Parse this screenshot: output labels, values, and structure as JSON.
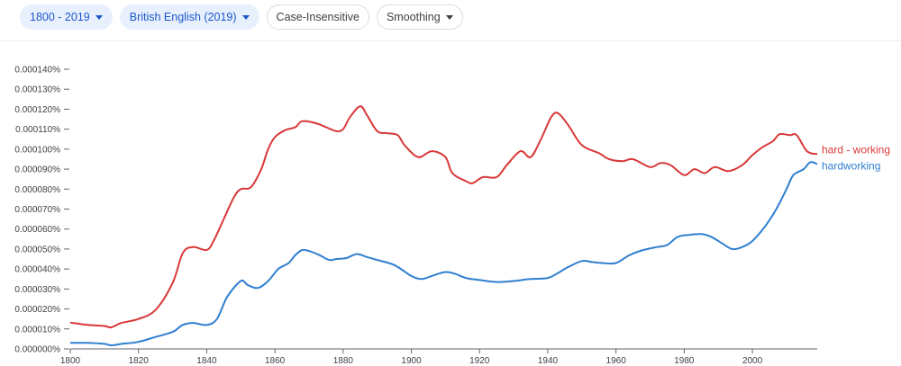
{
  "toolbar": {
    "range_label": "1800 - 2019",
    "corpus_label": "British English (2019)",
    "case_label": "Case-Insensitive",
    "smoothing_label": "Smoothing"
  },
  "colors": {
    "accent": "#1a57c9",
    "series_red": "#d93838",
    "series_blue": "#2f7fd0"
  },
  "chart_data": {
    "type": "line",
    "title": "",
    "xlabel": "",
    "ylabel": "",
    "xlim": [
      1800,
      2019
    ],
    "ylim": [
      0,
      0.00014
    ],
    "grid": false,
    "x_ticks": [
      1800,
      1820,
      1840,
      1860,
      1880,
      1900,
      1920,
      1940,
      1960,
      1980,
      2000
    ],
    "y_ticks": [
      "0.000000%",
      "0.000010%",
      "0.000020%",
      "0.000030%",
      "0.000040%",
      "0.000050%",
      "0.000060%",
      "0.000070%",
      "0.000080%",
      "0.000090%",
      "0.000100%",
      "0.000110%",
      "0.000120%",
      "0.000130%",
      "0.000140%"
    ],
    "series": [
      {
        "name": "hard - working",
        "color": "#d93838",
        "points": [
          [
            1800,
            1.32e-05
          ],
          [
            1805,
            1.2e-05
          ],
          [
            1810,
            1.15e-05
          ],
          [
            1812,
            1.08e-05
          ],
          [
            1815,
            1.3e-05
          ],
          [
            1820,
            1.5e-05
          ],
          [
            1825,
            1.95e-05
          ],
          [
            1830,
            3.3e-05
          ],
          [
            1833,
            4.8e-05
          ],
          [
            1836,
            5.1e-05
          ],
          [
            1840,
            4.95e-05
          ],
          [
            1842,
            5.4e-05
          ],
          [
            1845,
            6.5e-05
          ],
          [
            1848,
            7.6e-05
          ],
          [
            1850,
            8e-05
          ],
          [
            1853,
            8.1e-05
          ],
          [
            1856,
            9e-05
          ],
          [
            1858,
            0.0001
          ],
          [
            1860,
            0.000106
          ],
          [
            1863,
            0.0001095
          ],
          [
            1866,
            0.000111
          ],
          [
            1868,
            0.000114
          ],
          [
            1872,
            0.000113
          ],
          [
            1875,
            0.000111
          ],
          [
            1878,
            0.000109
          ],
          [
            1880,
            0.00011
          ],
          [
            1882,
            0.000116
          ],
          [
            1885,
            0.0001215
          ],
          [
            1887,
            0.000117
          ],
          [
            1890,
            0.000109
          ],
          [
            1893,
            0.000108
          ],
          [
            1896,
            0.000107
          ],
          [
            1898,
            0.000102
          ],
          [
            1902,
            9.6e-05
          ],
          [
            1906,
            9.9e-05
          ],
          [
            1910,
            9.6e-05
          ],
          [
            1912,
            8.8e-05
          ],
          [
            1916,
            8.4e-05
          ],
          [
            1918,
            8.3e-05
          ],
          [
            1921,
            8.6e-05
          ],
          [
            1925,
            8.6e-05
          ],
          [
            1928,
            9.2e-05
          ],
          [
            1932,
            9.9e-05
          ],
          [
            1935,
            9.6e-05
          ],
          [
            1938,
            0.000105
          ],
          [
            1941,
            0.000116
          ],
          [
            1943,
            0.000118
          ],
          [
            1946,
            0.000112
          ],
          [
            1950,
            0.000102
          ],
          [
            1955,
            9.8e-05
          ],
          [
            1958,
            9.5e-05
          ],
          [
            1962,
            9.4e-05
          ],
          [
            1965,
            9.5e-05
          ],
          [
            1970,
            9.1e-05
          ],
          [
            1973,
            9.3e-05
          ],
          [
            1976,
            9.2e-05
          ],
          [
            1980,
            8.7e-05
          ],
          [
            1983,
            9e-05
          ],
          [
            1986,
            8.8e-05
          ],
          [
            1989,
            9.1e-05
          ],
          [
            1993,
            8.9e-05
          ],
          [
            1997,
            9.2e-05
          ],
          [
            2000,
            9.7e-05
          ],
          [
            2003,
            0.000101
          ],
          [
            2006,
            0.000104
          ],
          [
            2008,
            0.0001075
          ],
          [
            2011,
            0.000107
          ],
          [
            2013,
            0.000107
          ],
          [
            2016,
            9.9e-05
          ],
          [
            2019,
            9.75e-05
          ]
        ]
      },
      {
        "name": "hardworking",
        "color": "#2f7fd0",
        "points": [
          [
            1800,
            3e-06
          ],
          [
            1805,
            3e-06
          ],
          [
            1810,
            2.5e-06
          ],
          [
            1812,
            1.8e-06
          ],
          [
            1815,
            2.5e-06
          ],
          [
            1820,
            3.5e-06
          ],
          [
            1825,
            6e-06
          ],
          [
            1830,
            8.5e-06
          ],
          [
            1833,
            1.2e-05
          ],
          [
            1836,
            1.3e-05
          ],
          [
            1840,
            1.2e-05
          ],
          [
            1843,
            1.5e-05
          ],
          [
            1846,
            2.6e-05
          ],
          [
            1850,
            3.4e-05
          ],
          [
            1852,
            3.2e-05
          ],
          [
            1855,
            3.05e-05
          ],
          [
            1858,
            3.4e-05
          ],
          [
            1861,
            4e-05
          ],
          [
            1864,
            4.3e-05
          ],
          [
            1866,
            4.7e-05
          ],
          [
            1868,
            4.95e-05
          ],
          [
            1870,
            4.9e-05
          ],
          [
            1873,
            4.7e-05
          ],
          [
            1876,
            4.45e-05
          ],
          [
            1878,
            4.5e-05
          ],
          [
            1881,
            4.55e-05
          ],
          [
            1884,
            4.75e-05
          ],
          [
            1887,
            4.6e-05
          ],
          [
            1890,
            4.45e-05
          ],
          [
            1895,
            4.2e-05
          ],
          [
            1900,
            3.65e-05
          ],
          [
            1903,
            3.5e-05
          ],
          [
            1906,
            3.65e-05
          ],
          [
            1910,
            3.85e-05
          ],
          [
            1913,
            3.75e-05
          ],
          [
            1916,
            3.55e-05
          ],
          [
            1920,
            3.45e-05
          ],
          [
            1925,
            3.35e-05
          ],
          [
            1930,
            3.4e-05
          ],
          [
            1935,
            3.5e-05
          ],
          [
            1940,
            3.55e-05
          ],
          [
            1943,
            3.8e-05
          ],
          [
            1946,
            4.1e-05
          ],
          [
            1950,
            4.4e-05
          ],
          [
            1953,
            4.35e-05
          ],
          [
            1956,
            4.3e-05
          ],
          [
            1960,
            4.3e-05
          ],
          [
            1964,
            4.7e-05
          ],
          [
            1968,
            4.95e-05
          ],
          [
            1972,
            5.1e-05
          ],
          [
            1975,
            5.2e-05
          ],
          [
            1978,
            5.6e-05
          ],
          [
            1981,
            5.7e-05
          ],
          [
            1985,
            5.75e-05
          ],
          [
            1988,
            5.6e-05
          ],
          [
            1991,
            5.3e-05
          ],
          [
            1994,
            5e-05
          ],
          [
            1997,
            5.1e-05
          ],
          [
            2000,
            5.4e-05
          ],
          [
            2004,
            6.2e-05
          ],
          [
            2007,
            7e-05
          ],
          [
            2010,
            8e-05
          ],
          [
            2012,
            8.7e-05
          ],
          [
            2015,
            9e-05
          ],
          [
            2017,
            9.35e-05
          ],
          [
            2019,
            9.25e-05
          ]
        ]
      }
    ]
  }
}
